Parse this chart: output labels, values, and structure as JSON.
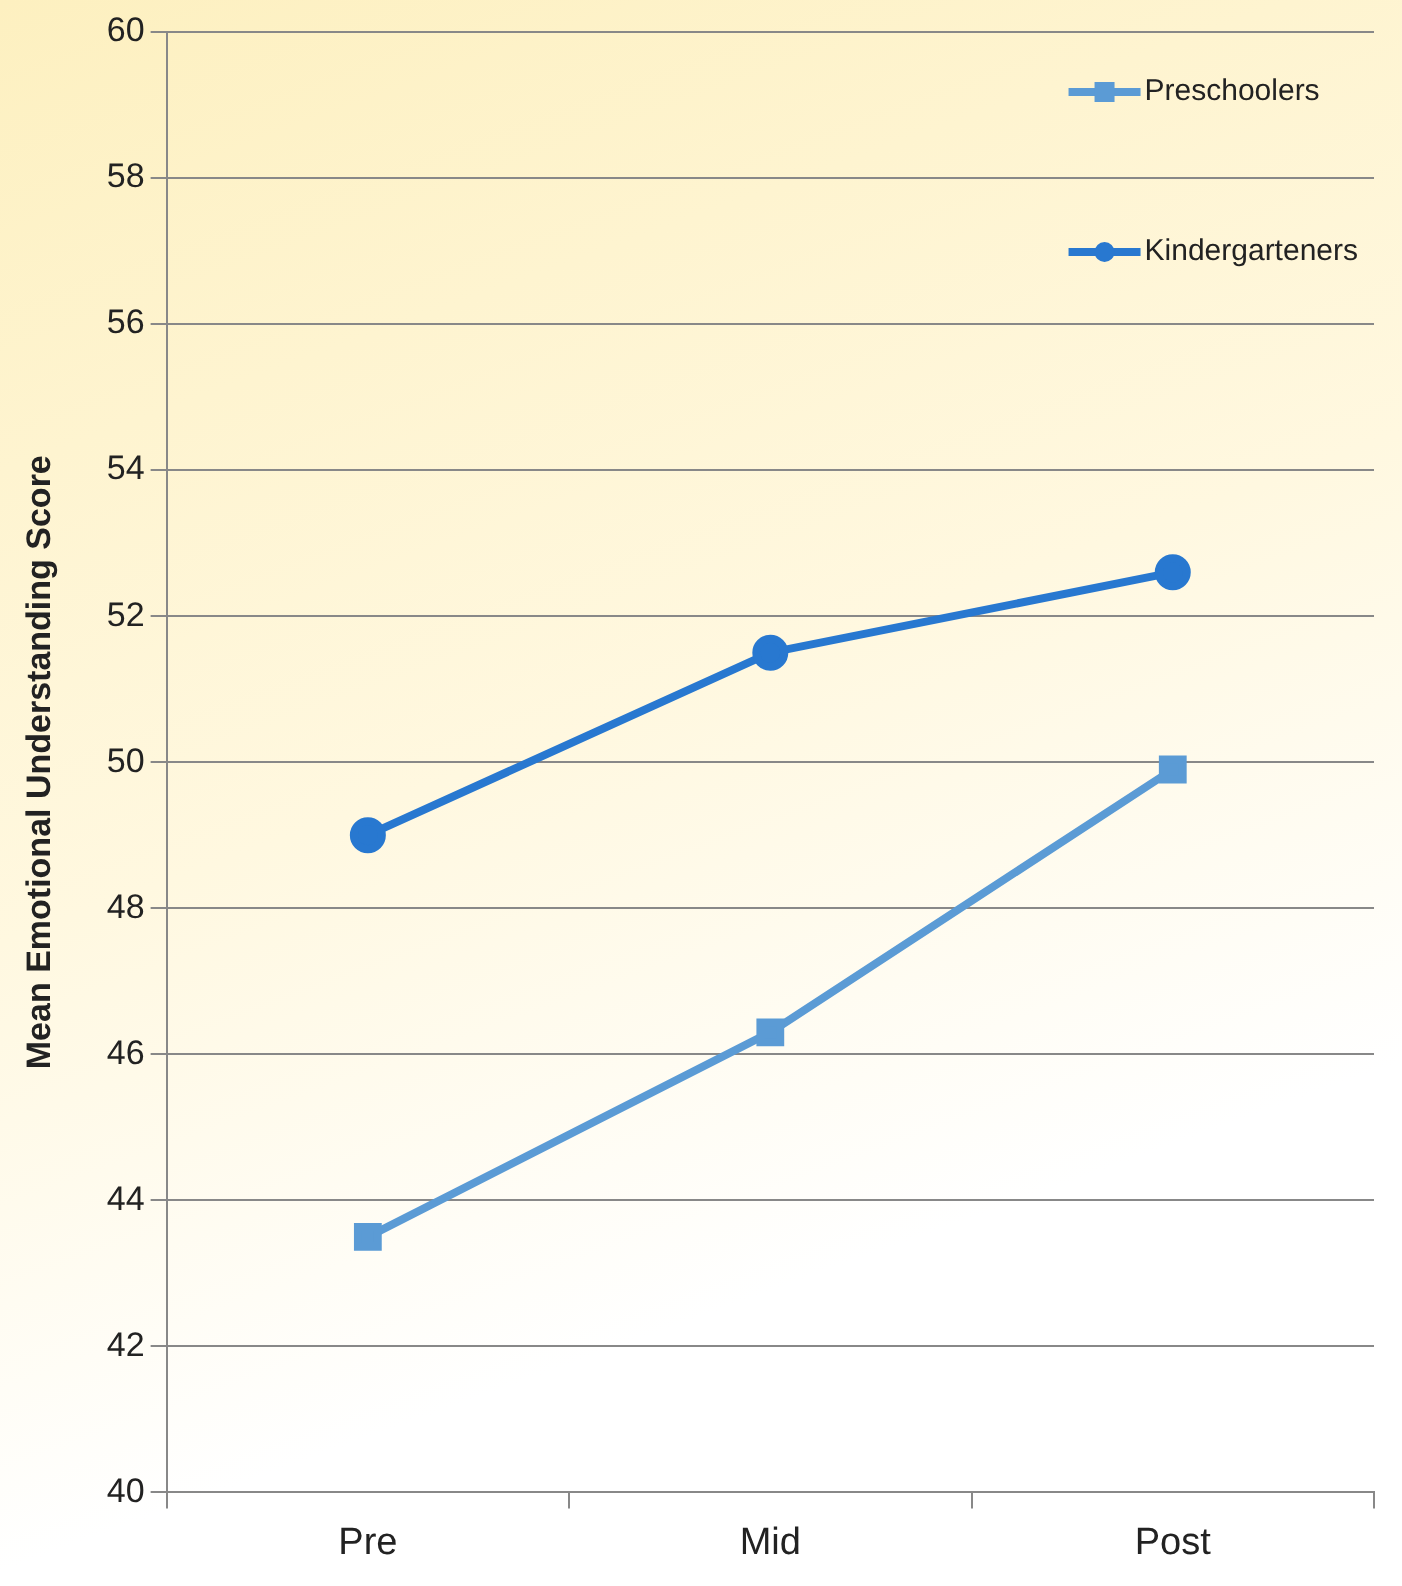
{
  "chart_data": {
    "type": "line",
    "ylabel": "Mean Emotional Understanding Score",
    "categories": [
      "Pre",
      "Mid",
      "Post"
    ],
    "series": [
      {
        "name": "Preschoolers",
        "color": "#5b9bd5",
        "marker": "square",
        "values": [
          43.5,
          46.3,
          49.9
        ]
      },
      {
        "name": "Kindergarteners",
        "color": "#2878d0",
        "marker": "circle",
        "values": [
          49.0,
          51.5,
          52.6
        ]
      }
    ],
    "ylim": [
      40,
      60
    ],
    "yticks": [
      40,
      42,
      44,
      46,
      48,
      50,
      52,
      54,
      56,
      58,
      60
    ],
    "grid": "y",
    "legend": "top right",
    "line_style": "solid"
  }
}
